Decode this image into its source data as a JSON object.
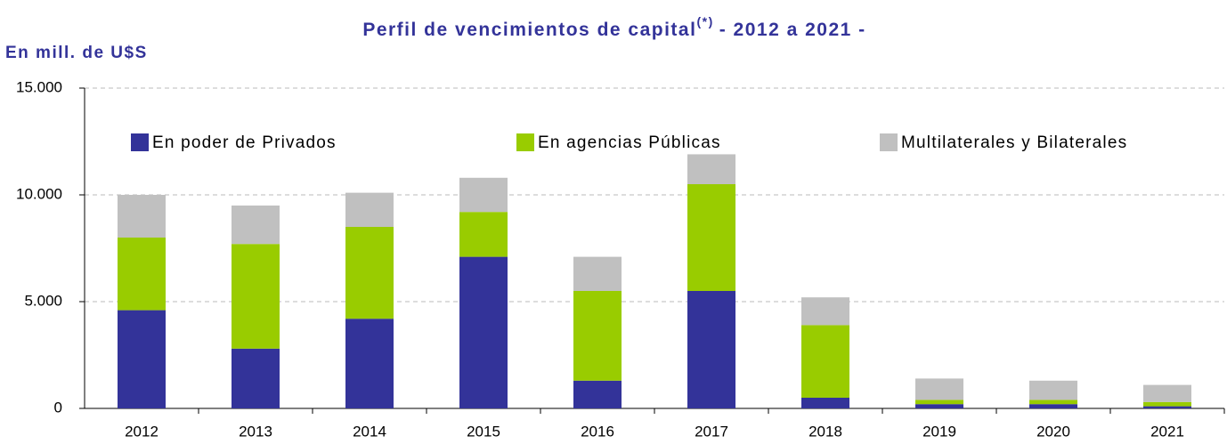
{
  "chart_data": {
    "type": "stacked_bar",
    "title": "Perfil de vencimientos de capital",
    "title_note": "(*)",
    "title_suffix": "- 2012 a 2021 -",
    "y_label": "En mill. de U$S",
    "categories": [
      "2012",
      "2013",
      "2014",
      "2015",
      "2016",
      "2017",
      "2018",
      "2019",
      "2020",
      "2021"
    ],
    "series": [
      {
        "name": "En poder de Privados",
        "color": "#333399",
        "values": [
          4600,
          2800,
          4200,
          7100,
          1300,
          5500,
          500,
          200,
          200,
          100
        ]
      },
      {
        "name": "En agencias Públicas",
        "color": "#99cc00",
        "values": [
          3400,
          4900,
          4300,
          2100,
          4200,
          5000,
          3400,
          200,
          200,
          200
        ]
      },
      {
        "name": "Multilaterales y Bilaterales",
        "color": "#c0c0c0",
        "values": [
          2000,
          1800,
          1600,
          1600,
          1600,
          1400,
          1300,
          1000,
          900,
          800
        ]
      }
    ],
    "ylim": [
      0,
      15000
    ],
    "yticks": [
      0,
      {
        "value": 5000,
        "label": "5.000"
      },
      {
        "value": 10000,
        "label": "10.000"
      },
      {
        "value": 15000,
        "label": "15.000"
      }
    ],
    "grid": true,
    "legend": "top"
  }
}
